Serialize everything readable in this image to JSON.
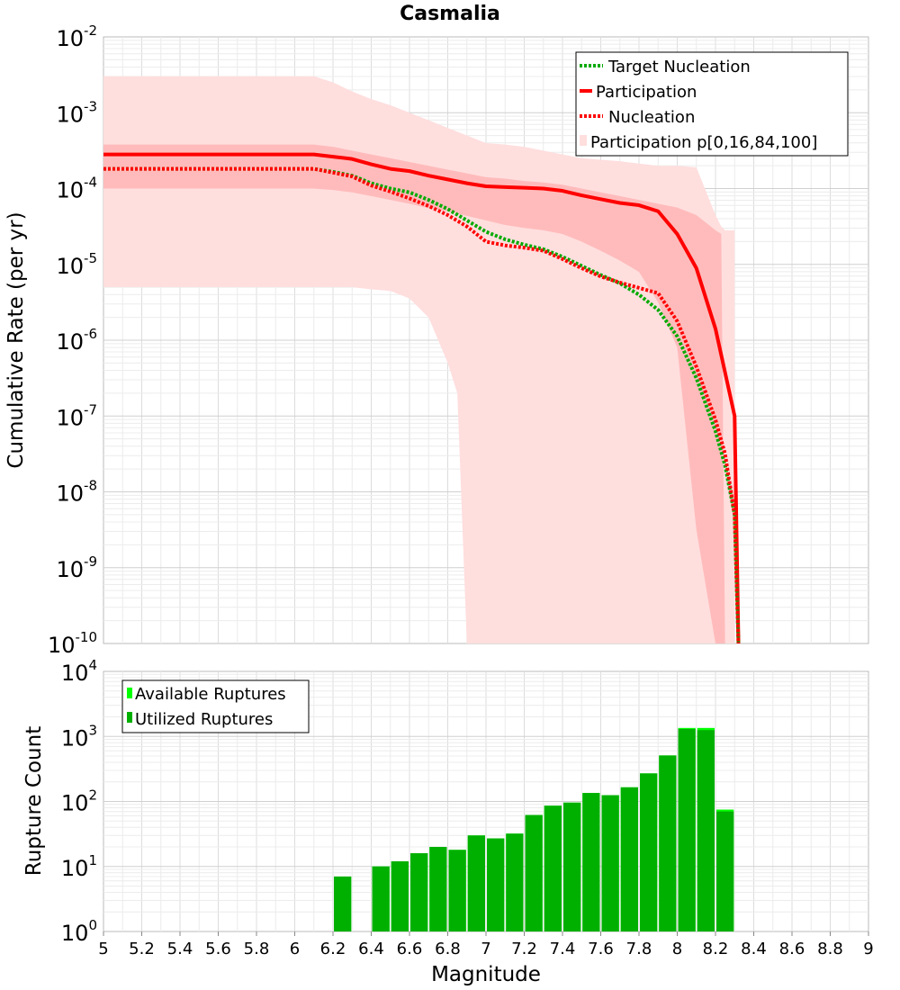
{
  "chart_data": [
    {
      "type": "line",
      "title": "Casmalia",
      "xlabel": "",
      "ylabel": "Cumulative Rate (per yr)",
      "xlim": [
        5,
        9
      ],
      "ylim_exponents": [
        -10,
        -2
      ],
      "y_scale": "log10",
      "y_tick_base": "10",
      "y_tick_exponents": [
        "-10",
        "-9",
        "-8",
        "-7",
        "-6",
        "-5",
        "-4",
        "-3",
        "-2"
      ],
      "legend_position": "top-right",
      "legend": [
        "Target Nucleation",
        "Participation",
        "Nucleation",
        "Participation p[0,16,84,100]"
      ],
      "colors": {
        "target_nucleation": "#00aa00",
        "participation": "#ff0000",
        "nucleation": "#ff0000",
        "band_outer": "#ffdede",
        "band_inner": "#ffbbbb"
      },
      "series": [
        {
          "name": "Target Nucleation",
          "style": "dotted",
          "x": [
            5,
            6.1,
            6.2,
            6.3,
            6.4,
            6.5,
            6.6,
            6.7,
            6.8,
            6.9,
            7.0,
            7.1,
            7.2,
            7.3,
            7.4,
            7.5,
            7.6,
            7.7,
            7.8,
            7.9,
            8.0,
            8.1,
            8.2,
            8.25,
            8.3,
            8.32
          ],
          "log10_y": [
            -3.74,
            -3.74,
            -3.78,
            -3.83,
            -3.93,
            -4.0,
            -4.05,
            -4.15,
            -4.27,
            -4.42,
            -4.57,
            -4.67,
            -4.74,
            -4.8,
            -4.9,
            -5.02,
            -5.14,
            -5.25,
            -5.4,
            -5.6,
            -5.95,
            -6.5,
            -7.2,
            -7.65,
            -8.3,
            -10
          ]
        },
        {
          "name": "Participation",
          "style": "solid",
          "x": [
            5,
            6.1,
            6.2,
            6.3,
            6.4,
            6.5,
            6.6,
            6.7,
            6.8,
            6.9,
            7.0,
            7.1,
            7.2,
            7.3,
            7.4,
            7.5,
            7.6,
            7.7,
            7.8,
            7.9,
            8.0,
            8.1,
            8.2,
            8.3,
            8.32
          ],
          "log10_y": [
            -3.55,
            -3.55,
            -3.58,
            -3.61,
            -3.68,
            -3.74,
            -3.77,
            -3.83,
            -3.88,
            -3.93,
            -3.97,
            -3.98,
            -3.99,
            -4.0,
            -4.03,
            -4.09,
            -4.14,
            -4.19,
            -4.22,
            -4.3,
            -4.6,
            -5.05,
            -5.85,
            -7.0,
            -10
          ]
        },
        {
          "name": "Nucleation",
          "style": "dotted",
          "x": [
            5,
            6.1,
            6.2,
            6.3,
            6.4,
            6.5,
            6.6,
            6.7,
            6.8,
            6.9,
            7.0,
            7.1,
            7.2,
            7.3,
            7.4,
            7.5,
            7.6,
            7.7,
            7.8,
            7.9,
            8.0,
            8.1,
            8.2,
            8.25,
            8.3,
            8.32
          ],
          "log10_y": [
            -3.74,
            -3.74,
            -3.79,
            -3.84,
            -3.96,
            -4.04,
            -4.13,
            -4.23,
            -4.35,
            -4.5,
            -4.7,
            -4.75,
            -4.78,
            -4.82,
            -4.93,
            -5.05,
            -5.16,
            -5.24,
            -5.31,
            -5.38,
            -5.75,
            -6.35,
            -7.05,
            -7.5,
            -8.3,
            -10
          ]
        }
      ],
      "bands": [
        {
          "name": "p0-p100",
          "x": [
            5,
            6.1,
            6.2,
            6.3,
            6.4,
            6.5,
            6.6,
            6.7,
            6.8,
            6.85,
            6.9,
            7.0,
            7.1,
            7.2,
            7.3,
            7.4,
            7.5,
            7.6,
            7.7,
            7.8,
            7.9,
            8.0,
            8.1,
            8.2,
            8.23,
            8.25,
            8.3
          ],
          "log10_upper": [
            -2.52,
            -2.52,
            -2.6,
            -2.72,
            -2.82,
            -2.9,
            -3.0,
            -3.1,
            -3.2,
            -3.25,
            -3.3,
            -3.4,
            -3.42,
            -3.45,
            -3.5,
            -3.55,
            -3.6,
            -3.62,
            -3.64,
            -3.67,
            -3.7,
            -3.7,
            -3.72,
            -4.35,
            -4.5,
            -4.55,
            -4.55
          ],
          "log10_lower": [
            -5.3,
            -5.3,
            -5.3,
            -5.3,
            -5.33,
            -5.35,
            -5.45,
            -5.7,
            -6.3,
            -6.7,
            -10,
            -10,
            -10,
            -10,
            -10,
            -10,
            -10,
            -10,
            -10,
            -10,
            -10,
            -10,
            -10,
            -10,
            -10,
            -10,
            -10
          ]
        },
        {
          "name": "p16-p84",
          "x": [
            5,
            6.1,
            6.2,
            6.3,
            6.4,
            6.5,
            6.6,
            6.7,
            6.8,
            6.9,
            7.0,
            7.1,
            7.2,
            7.3,
            7.4,
            7.5,
            7.6,
            7.7,
            7.8,
            7.9,
            8.0,
            8.1,
            8.2,
            8.23,
            8.25
          ],
          "log10_upper": [
            -3.42,
            -3.42,
            -3.45,
            -3.5,
            -3.55,
            -3.6,
            -3.65,
            -3.7,
            -3.75,
            -3.8,
            -3.85,
            -3.87,
            -3.9,
            -3.92,
            -3.95,
            -4.0,
            -4.05,
            -4.1,
            -4.15,
            -4.2,
            -4.25,
            -4.35,
            -4.55,
            -4.6,
            -10
          ],
          "log10_lower": [
            -4.0,
            -4.0,
            -4.02,
            -4.05,
            -4.1,
            -4.15,
            -4.2,
            -4.26,
            -4.3,
            -4.36,
            -4.42,
            -4.48,
            -4.52,
            -4.55,
            -4.6,
            -4.7,
            -4.82,
            -4.95,
            -5.1,
            -5.5,
            -6.1,
            -8.5,
            -10,
            -10,
            -10
          ]
        }
      ]
    },
    {
      "type": "bar",
      "title": "",
      "xlabel": "Magnitude",
      "ylabel": "Rupture Count",
      "xlim": [
        5,
        9
      ],
      "y_scale": "log10",
      "ylim_exponents": [
        0,
        4
      ],
      "y_tick_base": "10",
      "y_tick_exponents": [
        "0",
        "1",
        "2",
        "3",
        "4"
      ],
      "x_ticks": [
        "5",
        "5.2",
        "5.4",
        "5.6",
        "5.8",
        "6",
        "6.2",
        "6.4",
        "6.6",
        "6.8",
        "7",
        "7.2",
        "7.4",
        "7.6",
        "7.8",
        "8",
        "8.2",
        "8.4",
        "8.6",
        "8.8",
        "9"
      ],
      "legend_position": "top-left",
      "legend": [
        "Available Ruptures",
        "Utilized Ruptures"
      ],
      "colors": {
        "available": "#00ff00",
        "utilized": "#00b000"
      },
      "bar_centers": [
        6.25,
        6.45,
        6.55,
        6.65,
        6.75,
        6.85,
        6.95,
        7.05,
        7.15,
        7.25,
        7.35,
        7.45,
        7.55,
        7.65,
        7.75,
        7.85,
        7.95,
        8.05,
        8.15,
        8.25
      ],
      "available": [
        7,
        10,
        12,
        16,
        20,
        18,
        30,
        27,
        32,
        62,
        86,
        96,
        135,
        125,
        165,
        270,
        510,
        1350,
        1350,
        75
      ],
      "utilized": [
        7,
        10,
        12,
        16,
        20,
        18,
        30,
        27,
        32,
        62,
        86,
        96,
        135,
        125,
        165,
        270,
        510,
        1300,
        1250,
        70
      ]
    }
  ]
}
